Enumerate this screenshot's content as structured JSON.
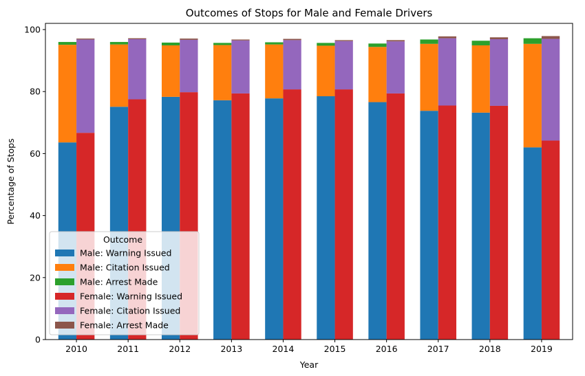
{
  "chart_data": {
    "type": "bar",
    "stacked": true,
    "grouped": true,
    "title": "Outcomes of Stops for Male and Female Drivers",
    "xlabel": "Year",
    "ylabel": "Percentage of Stops",
    "ylim": [
      0,
      102
    ],
    "yticks": [
      0,
      20,
      40,
      60,
      80,
      100
    ],
    "grid": false,
    "legend_title": "Outcome",
    "legend_position": "lower-left",
    "categories": [
      "2010",
      "2011",
      "2012",
      "2013",
      "2014",
      "2015",
      "2016",
      "2017",
      "2018",
      "2019"
    ],
    "groups": [
      {
        "name": "Male",
        "series": [
          {
            "name": "Male: Warning Issued",
            "color": "#1f77b4",
            "values": [
              63.6,
              75.1,
              78.3,
              77.2,
              77.8,
              78.5,
              76.6,
              73.8,
              73.2,
              62.0
            ]
          },
          {
            "name": "Male: Citation Issued",
            "color": "#ff7f0e",
            "values": [
              31.5,
              20.1,
              16.6,
              17.8,
              17.4,
              16.3,
              17.8,
              21.6,
              21.7,
              33.4
            ]
          },
          {
            "name": "Male: Arrest Made",
            "color": "#2ca02c",
            "values": [
              0.9,
              0.8,
              0.9,
              0.7,
              0.7,
              0.9,
              1.1,
              1.4,
              1.5,
              1.8
            ]
          }
        ]
      },
      {
        "name": "Female",
        "series": [
          {
            "name": "Female: Warning Issued",
            "color": "#d62728",
            "values": [
              66.7,
              77.5,
              79.8,
              79.4,
              80.7,
              80.7,
              79.4,
              75.5,
              75.4,
              64.2
            ]
          },
          {
            "name": "Female: Citation Issued",
            "color": "#9467bd",
            "values": [
              30.1,
              19.4,
              16.9,
              17.1,
              15.9,
              15.6,
              16.8,
              21.7,
              21.5,
              32.8
            ]
          },
          {
            "name": "Female: Arrest Made",
            "color": "#8c564b",
            "values": [
              0.3,
              0.3,
              0.4,
              0.3,
              0.4,
              0.3,
              0.4,
              0.6,
              0.6,
              0.9
            ]
          }
        ]
      }
    ]
  }
}
